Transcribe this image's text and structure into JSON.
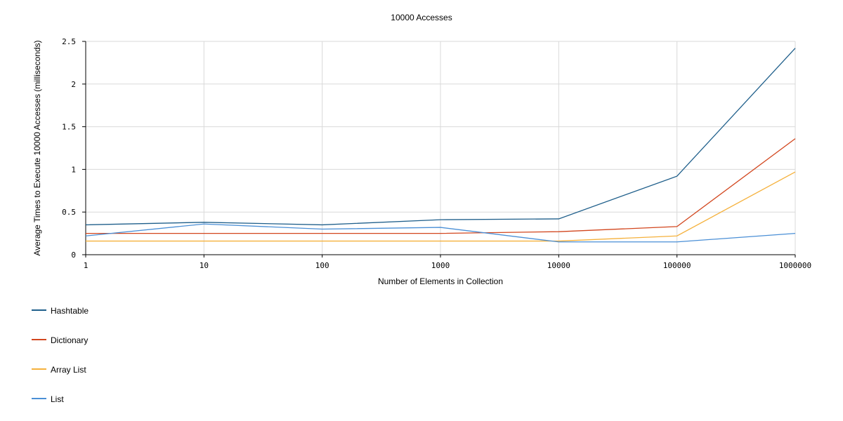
{
  "chart_data": {
    "type": "line",
    "title": "10000 Accesses",
    "xlabel": "Number of Elements in Collection",
    "ylabel": "Average Times to Execute 10000 Accesses (milliseconds)",
    "x_scale": "log",
    "categories": [
      "1",
      "10",
      "100",
      "1000",
      "10000",
      "100000",
      "1000000"
    ],
    "y_ticks": [
      "0",
      "0.5",
      "1",
      "1.5",
      "2",
      "2.5"
    ],
    "ylim": [
      0,
      2.5
    ],
    "grid": true,
    "legend_position": "bottom-left",
    "series": [
      {
        "name": "Hashtable",
        "color": "#1f5f8b",
        "values": [
          0.35,
          0.38,
          0.35,
          0.41,
          0.42,
          0.92,
          2.42
        ]
      },
      {
        "name": "Dictionary",
        "color": "#d2461e",
        "values": [
          0.25,
          0.25,
          0.25,
          0.25,
          0.27,
          0.33,
          1.36
        ]
      },
      {
        "name": "Array List",
        "color": "#f5b13c",
        "values": [
          0.16,
          0.16,
          0.16,
          0.16,
          0.16,
          0.22,
          0.97
        ]
      },
      {
        "name": "List",
        "color": "#4a8fd6",
        "values": [
          0.22,
          0.36,
          0.3,
          0.32,
          0.15,
          0.15,
          0.25
        ]
      }
    ]
  }
}
